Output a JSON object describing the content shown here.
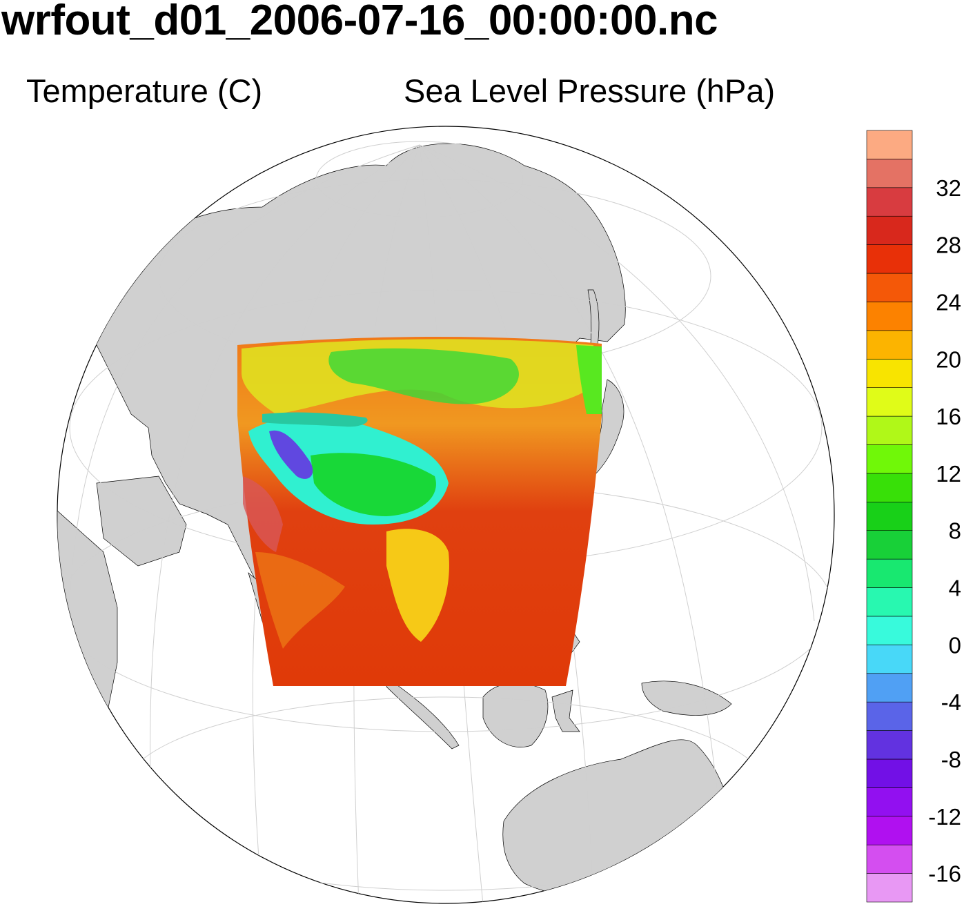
{
  "title": "wrfout_d01_2006-07-16_00:00:00.nc",
  "subtitle_left": "Temperature (C)",
  "subtitle_right": "Sea Level Pressure (hPa)",
  "colorbar": {
    "colors": [
      "#e898f4",
      "#d44ef0",
      "#b010f0",
      "#9210f0",
      "#7210e6",
      "#6232e0",
      "#5a64e8",
      "#50a0f4",
      "#48d8f8",
      "#38fadc",
      "#28f8b0",
      "#18e870",
      "#18d038",
      "#18d018",
      "#38e008",
      "#70f808",
      "#b0f818",
      "#e0fc18",
      "#f8e400",
      "#fcb400",
      "#fc8200",
      "#f45808",
      "#e83008",
      "#d8281c",
      "#d83c40",
      "#e47264",
      "#fcaa82"
    ],
    "labels": [
      "-16",
      "-12",
      "-8",
      "-4",
      "0",
      "4",
      "8",
      "12",
      "16",
      "20",
      "24",
      "28",
      "32"
    ]
  },
  "map": {
    "land_color": "#d0d0d0",
    "ocean_color": "#ffffff",
    "projection": "orthographic"
  }
}
